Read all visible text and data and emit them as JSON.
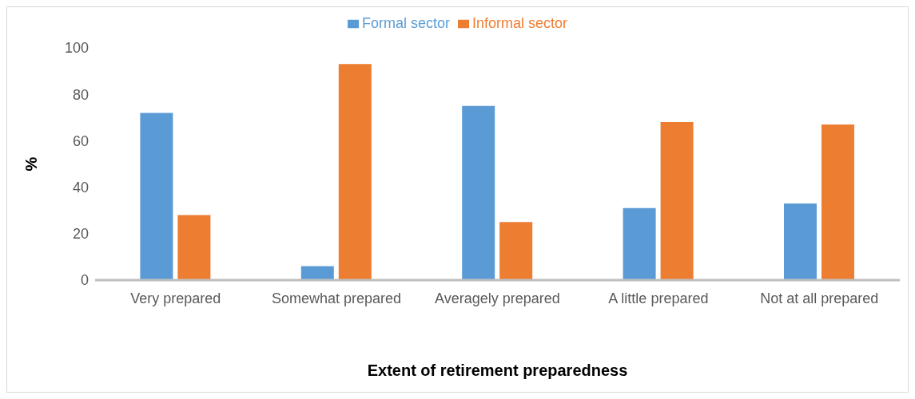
{
  "chart_data": {
    "type": "bar",
    "xlabel": "Extent of retirement preparedness",
    "ylabel": "%",
    "categories": [
      "Very prepared",
      "Somewhat prepared",
      "Averagely prepared",
      "A little prepared",
      "Not at all prepared"
    ],
    "series": [
      {
        "name": "Formal sector",
        "color": "#5b9bd5",
        "values": [
          72,
          6,
          75,
          31,
          33
        ]
      },
      {
        "name": "Informal sector",
        "color": "#ed7d31",
        "values": [
          28,
          93,
          25,
          68,
          67
        ]
      }
    ],
    "ylim": [
      0,
      100
    ],
    "yticks": [
      0,
      20,
      40,
      60,
      80,
      100
    ],
    "grid": false,
    "legend": "top"
  }
}
